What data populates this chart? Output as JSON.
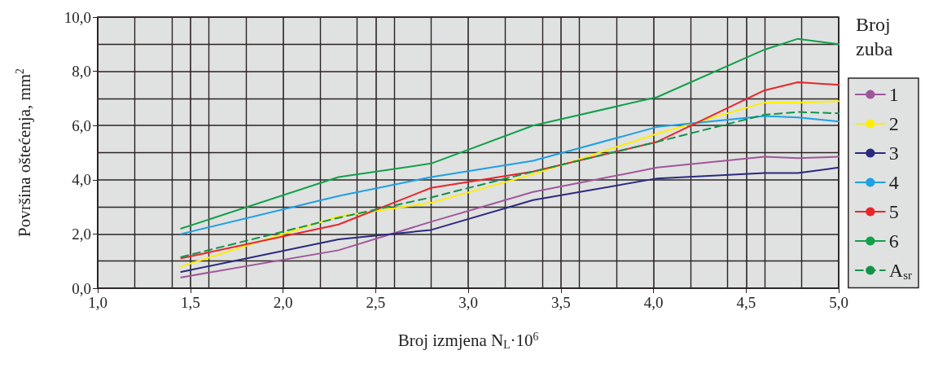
{
  "chart_data": {
    "type": "line",
    "xlabel": "Broj izmjena N$_{L}$·10$^{6}$",
    "ylabel": "Površina oštećenja, mm$^{2}$",
    "legend_title": "Broj zuba",
    "x": [
      1.45,
      2.3,
      2.8,
      3.35,
      4.02,
      4.6,
      4.78,
      5.0
    ],
    "series": [
      {
        "name": "1",
        "color": "#a0579a",
        "values": [
          0.4,
          1.4,
          2.45,
          3.55,
          4.45,
          4.85,
          4.8,
          4.85
        ]
      },
      {
        "name": "2",
        "color": "#ffee00",
        "values": [
          0.8,
          2.65,
          3.15,
          4.2,
          5.7,
          6.85,
          6.85,
          6.9
        ]
      },
      {
        "name": "3",
        "color": "#2b2a7f",
        "values": [
          0.6,
          1.8,
          2.15,
          3.25,
          4.05,
          4.25,
          4.25,
          4.45
        ]
      },
      {
        "name": "4",
        "color": "#1ea0e6",
        "values": [
          2.0,
          3.4,
          4.1,
          4.7,
          5.95,
          6.35,
          6.3,
          6.15
        ]
      },
      {
        "name": "5",
        "color": "#e8262a",
        "values": [
          1.1,
          2.35,
          3.7,
          4.3,
          5.4,
          7.3,
          7.6,
          7.5
        ]
      },
      {
        "name": "6",
        "color": "#12a04a",
        "values": [
          2.2,
          4.1,
          4.6,
          6.0,
          7.05,
          8.8,
          9.2,
          9.0
        ]
      },
      {
        "name": "A$_{sr}$",
        "color": "#12934a",
        "line_style": "dashed",
        "values": [
          1.15,
          2.6,
          3.35,
          4.3,
          5.4,
          6.4,
          6.5,
          6.45
        ]
      }
    ],
    "xlim": [
      1.0,
      5.0
    ],
    "xticks": [
      {
        "value": 1.0,
        "label": "1,0"
      },
      {
        "value": 1.5,
        "label": "1,5"
      },
      {
        "value": 2.0,
        "label": "2,0"
      },
      {
        "value": 2.5,
        "label": "2,5"
      },
      {
        "value": 3.0,
        "label": "3,0"
      },
      {
        "value": 3.5,
        "label": "3,5"
      },
      {
        "value": 4.0,
        "label": "4,0"
      },
      {
        "value": 4.5,
        "label": "4,5"
      },
      {
        "value": 5.0,
        "label": "5,0"
      }
    ],
    "ylim": [
      0,
      10
    ],
    "yticks": [
      {
        "value": 0,
        "label": "0,0"
      },
      {
        "value": 2,
        "label": "2,0"
      },
      {
        "value": 4,
        "label": "4,0"
      },
      {
        "value": 6,
        "label": "6,0"
      },
      {
        "value": 8,
        "label": "8,0"
      },
      {
        "value": 10,
        "label": "10,0"
      }
    ],
    "grid": true,
    "legend": "right",
    "marker": "none",
    "line_style": "solid"
  }
}
